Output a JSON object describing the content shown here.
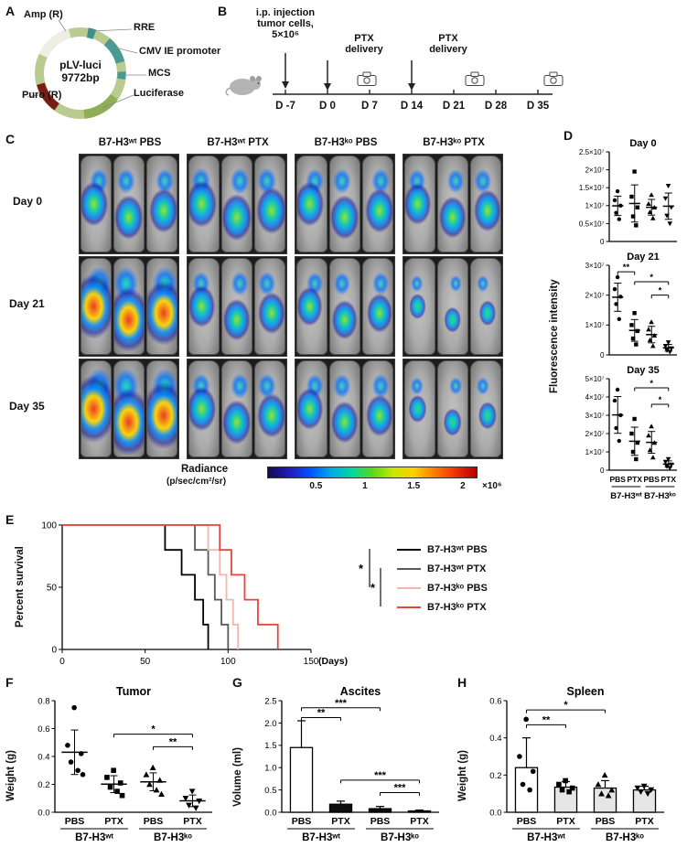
{
  "panel_labels": {
    "a": "A",
    "b": "B",
    "c": "C",
    "d": "D",
    "e": "E",
    "f": "F",
    "g": "G",
    "h": "H"
  },
  "panelA": {
    "plasmid_name": "pLV-luci",
    "plasmid_size": "9772bp",
    "features": {
      "amp": "Amp (R)",
      "rre": "RRE",
      "cmv": "CMV IE promoter",
      "mcs": "MCS",
      "luciferase": "Luciferase",
      "puro": "Puro (R)"
    }
  },
  "panelB": {
    "injection_label": "i.p. injection\ntumor cells,\n5×10⁶",
    "ptx_label_1": "PTX\ndelivery",
    "ptx_label_2": "PTX\ndelivery",
    "timepoints": [
      "D -7",
      "D 0",
      "D 7",
      "D 14",
      "D 21",
      "D 28",
      "D 35"
    ]
  },
  "panelC": {
    "column_headers": [
      "B7-H3ʷᵗ PBS",
      "B7-H3ʷᵗ PTX",
      "B7-H3ᵏᵒ PBS",
      "B7-H3ᵏᵒ PTX"
    ],
    "row_headers": [
      "Day 0",
      "Day 21",
      "Day 35"
    ],
    "mice_per_group": 3,
    "signal_intensity": [
      [
        0.55,
        0.6,
        0.55,
        0.5
      ],
      [
        0.95,
        0.5,
        0.45,
        0.18
      ],
      [
        1,
        0.55,
        0.5,
        0.22
      ]
    ],
    "scale": {
      "title": "Radiance",
      "units": "(p/sec/cm²/sr)",
      "ticks": [
        "0.5",
        "1",
        "1.5",
        "2"
      ],
      "exponent": "×10⁶"
    }
  },
  "panelD": {
    "ylabel": "Fluorescence intensity"
  },
  "panelE": {
    "sig_labels": [
      "*",
      "*"
    ]
  },
  "chart_data": [
    {
      "id": "fluor_day0",
      "type": "scatter",
      "title": "Day 0",
      "ylim": [
        0,
        2.5
      ],
      "yticks": [
        {
          "v": 0,
          "l": "0"
        },
        {
          "v": 0.5,
          "l": "0.5×10⁷"
        },
        {
          "v": 1,
          "l": "1×10⁷"
        },
        {
          "v": 1.5,
          "l": "1.5×10⁷"
        },
        {
          "v": 2,
          "l": "2×10⁷"
        },
        {
          "v": 2.5,
          "l": "2.5×10⁷"
        }
      ],
      "categories": [
        "PBS",
        "PTX",
        "PBS",
        "PTX"
      ],
      "group_spans": [
        {
          "label": "B7-H3ʷᵗ",
          "from": 0,
          "to": 1
        },
        {
          "label": "B7-H3ᵏᵒ",
          "from": 2,
          "to": 3
        }
      ],
      "show_xlabels": false,
      "points": [
        [
          1.4,
          1.15,
          1.0,
          0.8,
          0.62
        ],
        [
          1.95,
          1.25,
          0.95,
          0.7,
          0.45
        ],
        [
          1.3,
          1.05,
          0.95,
          0.82,
          0.65
        ],
        [
          1.55,
          1.2,
          0.95,
          0.72,
          0.5
        ]
      ],
      "brackets": []
    },
    {
      "id": "fluor_day21",
      "type": "scatter",
      "title": "Day 21",
      "ylim": [
        0,
        3
      ],
      "yticks": [
        {
          "v": 0,
          "l": "0"
        },
        {
          "v": 1,
          "l": "1×10⁷"
        },
        {
          "v": 2,
          "l": "2×10⁷"
        },
        {
          "v": 3,
          "l": "3×10⁷"
        }
      ],
      "categories": [
        "PBS",
        "PTX",
        "PBS",
        "PTX"
      ],
      "group_spans": [
        {
          "label": "B7-H3ʷᵗ",
          "from": 0,
          "to": 1
        },
        {
          "label": "B7-H3ᵏᵒ",
          "from": 2,
          "to": 3
        }
      ],
      "show_xlabels": false,
      "points": [
        [
          2.6,
          2.2,
          1.95,
          1.7,
          1.2
        ],
        [
          1.4,
          1.0,
          0.8,
          0.55,
          0.35
        ],
        [
          1.1,
          0.85,
          0.65,
          0.5,
          0.3
        ],
        [
          0.42,
          0.3,
          0.22,
          0.15,
          0.1
        ]
      ],
      "brackets": [
        {
          "g1": 0,
          "g2": 1,
          "label": "**",
          "y": 2.78
        },
        {
          "g1": 1,
          "g2": 3,
          "label": "*",
          "y": 2.45
        },
        {
          "g1": 2,
          "g2": 3,
          "label": "*",
          "y": 2.0
        }
      ]
    },
    {
      "id": "fluor_day35",
      "type": "scatter",
      "title": "Day 35",
      "ylim": [
        0,
        5
      ],
      "yticks": [
        {
          "v": 0,
          "l": "0"
        },
        {
          "v": 1,
          "l": "1×10⁷"
        },
        {
          "v": 2,
          "l": "2×10⁷"
        },
        {
          "v": 3,
          "l": "3×10⁷"
        },
        {
          "v": 4,
          "l": "4×10⁷"
        },
        {
          "v": 5,
          "l": "5×10⁷"
        }
      ],
      "categories": [
        "PBS",
        "PTX",
        "PBS",
        "PTX"
      ],
      "group_spans": [
        {
          "label": "B7-H3ʷᵗ",
          "from": 0,
          "to": 1
        },
        {
          "label": "B7-H3ᵏᵒ",
          "from": 2,
          "to": 3
        }
      ],
      "show_xlabels": true,
      "points": [
        [
          4.4,
          3.8,
          3.0,
          2.3,
          1.6
        ],
        [
          2.8,
          2.0,
          1.5,
          1.0,
          0.6
        ],
        [
          2.4,
          1.9,
          1.5,
          1.1,
          0.7
        ],
        [
          0.6,
          0.45,
          0.3,
          0.2,
          0.12
        ]
      ],
      "brackets": [
        {
          "g1": 1,
          "g2": 3,
          "label": "*",
          "y": 4.5
        },
        {
          "g1": 2,
          "g2": 3,
          "label": "*",
          "y": 3.6
        }
      ]
    },
    {
      "id": "survival",
      "type": "survival",
      "xlabel": "(Days)",
      "ylabel": "Percent survival",
      "xlim": [
        0,
        150
      ],
      "xticks": [
        0,
        50,
        100,
        150
      ],
      "yticks": [
        0,
        50,
        100
      ],
      "series": [
        {
          "name": "B7-H3ʷᵗ PBS",
          "color": "#000000",
          "deaths": [
            62,
            72,
            80,
            85,
            88
          ]
        },
        {
          "name": "B7-H3ʷᵗ PTX",
          "color": "#595959",
          "deaths": [
            80,
            88,
            92,
            96,
            100
          ]
        },
        {
          "name": "B7-H3ᵏᵒ PBS",
          "color": "#f2b5b1",
          "deaths": [
            88,
            95,
            99,
            103,
            106
          ]
        },
        {
          "name": "B7-H3ᵏᵒ PTX",
          "color": "#e6453e",
          "deaths": [
            95,
            102,
            110,
            118,
            130
          ]
        }
      ]
    },
    {
      "id": "tumor",
      "type": "scatter",
      "title": "Tumor",
      "ylabel": "Weight (g)",
      "ylim": [
        0,
        0.8
      ],
      "yticks": [
        {
          "v": 0,
          "l": "0.0"
        },
        {
          "v": 0.2,
          "l": "0.2"
        },
        {
          "v": 0.4,
          "l": "0.4"
        },
        {
          "v": 0.6,
          "l": "0.6"
        },
        {
          "v": 0.8,
          "l": "0.8"
        }
      ],
      "categories": [
        "PBS",
        "PTX",
        "PBS",
        "PTX"
      ],
      "group_spans": [
        {
          "label": "B7-H3ʷᵗ",
          "from": 0,
          "to": 1
        },
        {
          "label": "B7-H3ᵏᵒ",
          "from": 2,
          "to": 3
        }
      ],
      "show_xlabels": true,
      "points": [
        [
          0.75,
          0.48,
          0.42,
          0.36,
          0.3,
          0.27
        ],
        [
          0.3,
          0.25,
          0.21,
          0.18,
          0.15,
          0.12
        ],
        [
          0.32,
          0.27,
          0.23,
          0.2,
          0.16,
          0.13
        ],
        [
          0.15,
          0.1,
          0.08,
          0.05,
          0.03
        ]
      ],
      "brackets": [
        {
          "g1": 1,
          "g2": 3,
          "label": "*",
          "y": 0.56
        },
        {
          "g1": 2,
          "g2": 3,
          "label": "**",
          "y": 0.47
        }
      ]
    },
    {
      "id": "ascites",
      "type": "bar",
      "title": "Ascites",
      "ylabel": "Volume (ml)",
      "ylim": [
        0,
        2.5
      ],
      "yticks": [
        {
          "v": 0,
          "l": "0.0"
        },
        {
          "v": 0.5,
          "l": "0.5"
        },
        {
          "v": 1,
          "l": "1.0"
        },
        {
          "v": 1.5,
          "l": "1.5"
        },
        {
          "v": 2,
          "l": "2.0"
        },
        {
          "v": 2.5,
          "l": "2.5"
        }
      ],
      "categories": [
        "PBS",
        "PTX",
        "PBS",
        "PTX"
      ],
      "group_spans": [
        {
          "label": "B7-H3ʷᵗ",
          "from": 0,
          "to": 1
        },
        {
          "label": "B7-H3ᵏᵒ",
          "from": 2,
          "to": 3
        }
      ],
      "show_xlabels": true,
      "values": [
        1.45,
        0.18,
        0.08,
        0.03
      ],
      "errors": [
        0.6,
        0.07,
        0.05,
        0.02
      ],
      "fills": [
        "#ffffff",
        "#0d0d0d",
        "#0d0d0d",
        "#0d0d0d"
      ],
      "brackets": [
        {
          "g1": 0,
          "g2": 2,
          "label": "***",
          "y": 2.34
        },
        {
          "g1": 0,
          "g2": 1,
          "label": "**",
          "y": 2.12
        },
        {
          "g1": 1,
          "g2": 3,
          "label": "***",
          "y": 0.72
        },
        {
          "g1": 2,
          "g2": 3,
          "label": "***",
          "y": 0.44
        }
      ]
    },
    {
      "id": "spleen",
      "type": "bar",
      "title": "Spleen",
      "ylabel": "Weight (g)",
      "ylim": [
        0,
        0.6
      ],
      "yticks": [
        {
          "v": 0,
          "l": "0.0"
        },
        {
          "v": 0.2,
          "l": "0.2"
        },
        {
          "v": 0.4,
          "l": "0.4"
        },
        {
          "v": 0.6,
          "l": "0.6"
        }
      ],
      "categories": [
        "PBS",
        "PTX",
        "PBS",
        "PTX"
      ],
      "group_spans": [
        {
          "label": "B7-H3ʷᵗ",
          "from": 0,
          "to": 1
        },
        {
          "label": "B7-H3ᵏᵒ",
          "from": 2,
          "to": 3
        }
      ],
      "show_xlabels": true,
      "values": [
        0.24,
        0.135,
        0.13,
        0.12
      ],
      "errors": [
        0.16,
        0.03,
        0.04,
        0.02
      ],
      "fills": [
        "#ffffff",
        "#e6e6e6",
        "#e6e6e6",
        "#e6e6e6"
      ],
      "points": [
        [
          0.5,
          0.3,
          0.22,
          0.15,
          0.12
        ],
        [
          0.17,
          0.15,
          0.13,
          0.12,
          0.11
        ],
        [
          0.2,
          0.15,
          0.12,
          0.1,
          0.09
        ],
        [
          0.14,
          0.13,
          0.12,
          0.11,
          0.1
        ]
      ],
      "brackets": [
        {
          "g1": 0,
          "g2": 2,
          "label": "*",
          "y": 0.55
        },
        {
          "g1": 0,
          "g2": 1,
          "label": "**",
          "y": 0.47
        }
      ]
    }
  ]
}
